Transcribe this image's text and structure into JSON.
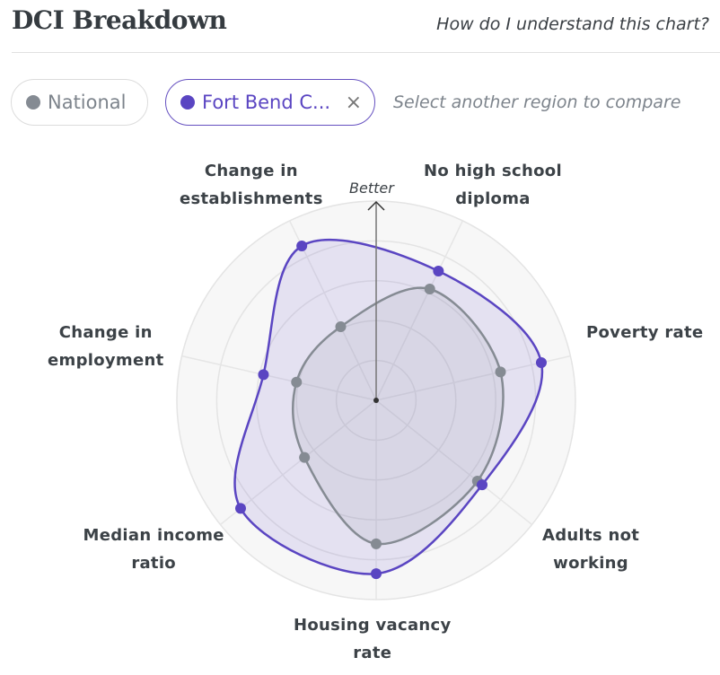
{
  "header": {
    "title": "DCI Breakdown",
    "help_link": "How do I understand this chart?"
  },
  "regions": {
    "national": {
      "label": "National",
      "color": "#858b93"
    },
    "fort_bend": {
      "label": "Fort Bend C...",
      "color": "#5a45c2",
      "remove": "×"
    },
    "compare_prompt": "Select another region to compare"
  },
  "chart_data": {
    "type": "radar",
    "title": "DCI Breakdown",
    "direction_label": "Better",
    "axes": [
      "No high school diploma",
      "Poverty rate",
      "Adults not working",
      "Housing vacancy rate",
      "Median income ratio",
      "Change in employment",
      "Change in establishments"
    ],
    "axis_label_lines": [
      [
        "No high school",
        "diploma"
      ],
      [
        "Poverty rate"
      ],
      [
        "Adults not",
        "working"
      ],
      [
        "Housing vacancy",
        "rate"
      ],
      [
        "Median income",
        "ratio"
      ],
      [
        "Change in",
        "employment"
      ],
      [
        "Change in",
        "establishments"
      ]
    ],
    "range": [
      0,
      100
    ],
    "rings": 5,
    "series": [
      {
        "name": "National",
        "color": "#858b93",
        "values": [
          62,
          64,
          65,
          72,
          46,
          41,
          41
        ]
      },
      {
        "name": "Fort Bend C...",
        "color": "#5a45c2",
        "values": [
          72,
          85,
          68,
          87,
          87,
          58,
          86
        ]
      }
    ]
  }
}
